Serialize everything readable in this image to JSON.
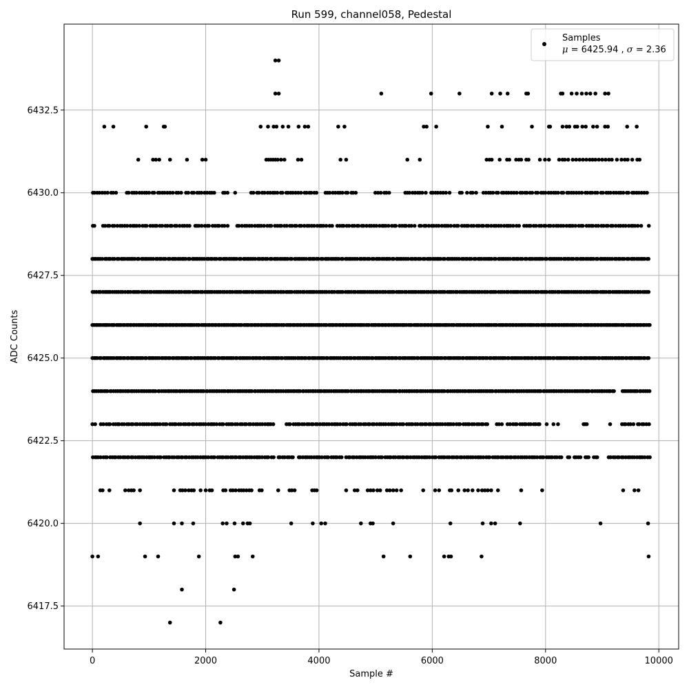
{
  "chart_data": {
    "type": "scatter",
    "title": "Run 599, channel058, Pedestal",
    "xlabel": "Sample #",
    "ylabel": "ADC Counts",
    "xlim": [
      -500,
      10350
    ],
    "ylim": [
      6416.2,
      6435.1
    ],
    "x_ticks": [
      0,
      2000,
      4000,
      6000,
      8000,
      10000
    ],
    "x_tick_labels": [
      "0",
      "2000",
      "4000",
      "6000",
      "8000",
      "10000"
    ],
    "y_ticks": [
      6417.5,
      6420.0,
      6422.5,
      6425.0,
      6427.5,
      6430.0,
      6432.5
    ],
    "y_tick_labels": [
      "6417.5",
      "6420.0",
      "6422.5",
      "6425.0",
      "6427.5",
      "6430.0",
      "6432.5"
    ],
    "grid": true,
    "legend_position": "top-right",
    "series": [
      {
        "name": "Samples",
        "color": "#000000",
        "marker": "circle",
        "legend_line2_prefix": "μ",
        "legend_mu": "6425.94",
        "legend_line2_sep": ", ",
        "legend_sigma_symbol": "σ",
        "legend_sigma": "2.36",
        "levels": [
          {
            "y": 6434,
            "x": [
              3230,
              3290
            ]
          },
          {
            "y": 6433,
            "x": [
              3230,
              3290,
              5100,
              5980,
              6480,
              7050,
              7200,
              7330,
              7660,
              7690,
              8270,
              8300,
              8460,
              8550,
              8640,
              8720,
              8790,
              8880,
              9050,
              9110
            ]
          },
          {
            "y": 6432,
            "x": [
              210,
              370,
              950,
              1260,
              1280,
              2970,
              3100,
              3200,
              3250,
              3360,
              3460,
              3640,
              3750,
              3810,
              4340,
              4450,
              5850,
              5900,
              6070,
              6980,
              7230,
              7760,
              8060,
              8080,
              8300,
              8370,
              8420,
              8520,
              8560,
              8650,
              8710,
              8840,
              8910,
              9050,
              9100,
              9440,
              9610
            ]
          },
          {
            "y": 6431,
            "x": [
              810,
              1070,
              1120,
              1180,
              1370,
              1670,
              1940,
              2000,
              3070,
              3110,
              3150,
              3190,
              3230,
              3270,
              3330,
              3390,
              3630,
              3690,
              4380,
              4480,
              5560,
              5780,
              6960,
              7010,
              7050,
              7190,
              7320,
              7360,
              7480,
              7530,
              7570,
              7660,
              7700,
              7900,
              7990,
              8060,
              8240,
              8300,
              8340,
              8400,
              8480,
              8540,
              8600,
              8660,
              8720,
              8780,
              8830,
              8880,
              8940,
              9000,
              9060,
              9120,
              9170,
              9260,
              9340,
              9400,
              9450,
              9530,
              9620,
              9660
            ]
          },
          {
            "y": 6430,
            "step": 46,
            "ranges": [
              [
                0,
                3000
              ],
              [
                3000,
                4700
              ],
              [
                4960,
                6330
              ],
              [
                6440,
                9830
              ]
            ],
            "gaps": [
              [
                430,
                560
              ],
              [
                1580,
                1650
              ],
              [
                2200,
                2300
              ],
              [
                2400,
                2480
              ],
              [
                2560,
                2800
              ],
              [
                3970,
                4100
              ],
              [
                4700,
                4960
              ],
              [
                5250,
                5520
              ],
              [
                5900,
                5950
              ],
              [
                6330,
                6440
              ],
              [
                6560,
                6600
              ],
              [
                6800,
                6900
              ]
            ]
          },
          {
            "y": 6429,
            "step": 44,
            "ranges": [
              [
                0,
                9850
              ]
            ],
            "gaps": [
              [
                80,
                150
              ],
              [
                1720,
                1800
              ],
              [
                2400,
                2500
              ],
              [
                4250,
                4320
              ],
              [
                5700,
                5760
              ],
              [
                7550,
                7600
              ],
              [
                9700,
                9760
              ]
            ]
          },
          {
            "y": 6428,
            "step": 36,
            "ranges": [
              [
                0,
                9850
              ]
            ],
            "gaps": []
          },
          {
            "y": 6427,
            "step": 36,
            "ranges": [
              [
                0,
                9850
              ]
            ],
            "gaps": []
          },
          {
            "y": 6426,
            "step": 30,
            "ranges": [
              [
                0,
                9850
              ]
            ],
            "gaps": []
          },
          {
            "y": 6425,
            "step": 32,
            "ranges": [
              [
                0,
                9850
              ]
            ],
            "gaps": []
          },
          {
            "y": 6424,
            "step": 34,
            "ranges": [
              [
                0,
                9850
              ]
            ],
            "gaps": [
              [
                9230,
                9320
              ]
            ]
          },
          {
            "y": 6423,
            "step": 40,
            "ranges": [
              [
                0,
                3200
              ],
              [
                3420,
                8220
              ],
              [
                8660,
                8740
              ],
              [
                9140,
                9840
              ]
            ],
            "gaps": [
              [
                70,
                120
              ],
              [
                7000,
                7100
              ],
              [
                7270,
                7300
              ],
              [
                7940,
                8000
              ],
              [
                8050,
                8110
              ],
              [
                8160,
                8200
              ],
              [
                9160,
                9330
              ],
              [
                9580,
                9620
              ]
            ]
          },
          {
            "y": 6422,
            "step": 38,
            "ranges": [
              [
                0,
                3200
              ],
              [
                3280,
                3560
              ],
              [
                3640,
                9850
              ]
            ],
            "gaps": [
              [
                3210,
                3260
              ],
              [
                3570,
                3640
              ],
              [
                4410,
                4450
              ],
              [
                8300,
                8360
              ],
              [
                8460,
                8510
              ],
              [
                8640,
                8690
              ],
              [
                8780,
                8830
              ],
              [
                8950,
                9100
              ]
            ]
          },
          {
            "y": 6421,
            "x": [
              140,
              180,
              300,
              580,
              640,
              690,
              730,
              840,
              1440,
              1550,
              1590,
              1640,
              1700,
              1750,
              1790,
              1910,
              2000,
              2070,
              2110,
              2310,
              2350,
              2440,
              2480,
              2530,
              2590,
              2630,
              2670,
              2720,
              2770,
              2810,
              2950,
              2990,
              3280,
              3480,
              3520,
              3570,
              3880,
              3920,
              3960,
              4480,
              4630,
              4680,
              4860,
              4910,
              4960,
              5030,
              5080,
              5200,
              5250,
              5310,
              5370,
              5450,
              5840,
              6050,
              6120,
              6310,
              6340,
              6460,
              6570,
              6630,
              6710,
              6810,
              6880,
              6930,
              6980,
              7040,
              7160,
              7570,
              7940,
              9370,
              9570,
              9640
            ]
          },
          {
            "y": 6420,
            "x": [
              840,
              1440,
              1580,
              1780,
              2300,
              2370,
              2510,
              2660,
              2740,
              2780,
              3510,
              3890,
              4040,
              4110,
              4740,
              4910,
              4950,
              5310,
              6320,
              6890,
              7040,
              7110,
              7550,
              8970,
              9810
            ]
          },
          {
            "y": 6419,
            "x": [
              0,
              100,
              930,
              1160,
              1880,
              2520,
              2570,
              2830,
              5140,
              5610,
              6210,
              6290,
              6330,
              6870,
              9820
            ]
          },
          {
            "y": 6418,
            "x": [
              1580,
              2500
            ]
          },
          {
            "y": 6417,
            "x": [
              1370,
              2260
            ]
          }
        ]
      }
    ]
  }
}
